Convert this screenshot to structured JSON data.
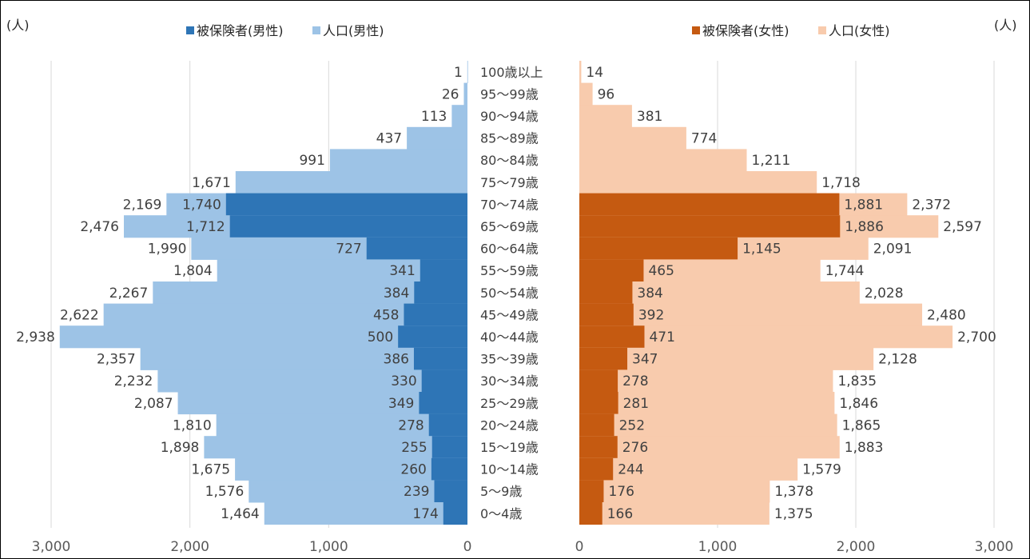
{
  "unit_left": "(人)",
  "unit_right": "(人)",
  "colors": {
    "male_insured": "#2E75B6",
    "male_pop": "#9DC3E6",
    "female_insured": "#C55A11",
    "female_pop": "#F8CBAD",
    "grid": "#D9D9D9",
    "border": "#000000"
  },
  "chart_data": {
    "type": "bar",
    "orientation": "horizontal-population-pyramid",
    "categories": [
      "100歳以上",
      "95～99歳",
      "90～94歳",
      "85～89歳",
      "80～84歳",
      "75～79歳",
      "70～74歳",
      "65～69歳",
      "60～64歳",
      "55～59歳",
      "50～54歳",
      "45～49歳",
      "40～44歳",
      "35～39歳",
      "30～34歳",
      "25～29歳",
      "20～24歳",
      "15～19歳",
      "10～14歳",
      "5～9歳",
      "0～4歳"
    ],
    "series": [
      {
        "name": "被保険者(男性)",
        "side": "left",
        "values": [
          null,
          null,
          null,
          null,
          null,
          null,
          1740,
          1712,
          727,
          341,
          384,
          458,
          500,
          386,
          330,
          349,
          278,
          255,
          260,
          239,
          174
        ]
      },
      {
        "name": "人口(男性)",
        "side": "left",
        "values": [
          1,
          26,
          113,
          437,
          991,
          1671,
          2169,
          2476,
          1990,
          1804,
          2267,
          2622,
          2938,
          2357,
          2232,
          2087,
          1810,
          1898,
          1675,
          1576,
          1464
        ]
      },
      {
        "name": "被保険者(女性)",
        "side": "right",
        "values": [
          null,
          null,
          null,
          null,
          null,
          null,
          1881,
          1886,
          1145,
          465,
          384,
          392,
          471,
          347,
          278,
          281,
          252,
          276,
          244,
          176,
          166
        ]
      },
      {
        "name": "人口(女性)",
        "side": "right",
        "values": [
          14,
          96,
          381,
          774,
          1211,
          1718,
          2372,
          2597,
          2091,
          1744,
          2028,
          2480,
          2700,
          2128,
          1835,
          1846,
          1865,
          1883,
          1579,
          1378,
          1375
        ]
      }
    ],
    "x_left_ticks": [
      "3,000",
      "2,000",
      "1,000",
      "0"
    ],
    "x_right_ticks": [
      "0",
      "1,000",
      "2,000",
      "3,000"
    ],
    "xlim": [
      0,
      3000
    ],
    "grid": true,
    "legend_placement": "top"
  }
}
